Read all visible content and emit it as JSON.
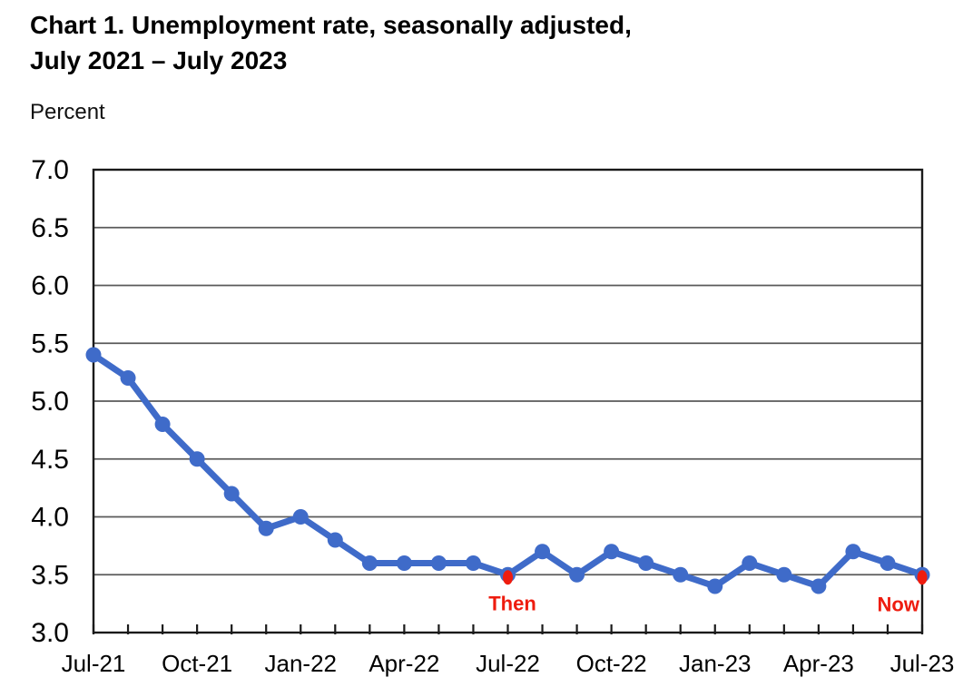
{
  "header": {
    "title_line1": "Chart 1. Unemployment rate, seasonally adjusted,",
    "title_line2": "July 2021 – July 2023",
    "unit_label": "Percent"
  },
  "colors": {
    "line": "#3F6BC9",
    "marker": "#3F6BC9",
    "highlight": "#EE1C0F",
    "annotation_text": "#EE1C0F",
    "gridline": "#5a5a5a",
    "axis": "#1a1a1a",
    "text": "#000000",
    "background": "#ffffff"
  },
  "chart_data": {
    "type": "line",
    "title": "Chart 1. Unemployment rate, seasonally adjusted, July 2021 – July 2023",
    "ylabel": "Percent",
    "xlabel": "",
    "grid": true,
    "legend_position": "none",
    "ylim": [
      3.0,
      7.0
    ],
    "ytick_step": 0.5,
    "ytick_labels": [
      "3.0",
      "3.5",
      "4.0",
      "4.5",
      "5.0",
      "5.5",
      "6.0",
      "6.5",
      "7.0"
    ],
    "x": [
      "Jul-21",
      "Aug-21",
      "Sep-21",
      "Oct-21",
      "Nov-21",
      "Dec-21",
      "Jan-22",
      "Feb-22",
      "Mar-22",
      "Apr-22",
      "May-22",
      "Jun-22",
      "Jul-22",
      "Aug-22",
      "Sep-22",
      "Oct-22",
      "Nov-22",
      "Dec-22",
      "Jan-23",
      "Feb-23",
      "Mar-23",
      "Apr-23",
      "May-23",
      "Jun-23",
      "Jul-23"
    ],
    "series": [
      {
        "name": "Unemployment rate",
        "values": [
          5.4,
          5.2,
          4.8,
          4.5,
          4.2,
          3.9,
          4.0,
          3.8,
          3.6,
          3.6,
          3.6,
          3.6,
          3.5,
          3.7,
          3.5,
          3.7,
          3.6,
          3.5,
          3.4,
          3.6,
          3.5,
          3.4,
          3.7,
          3.6,
          3.5
        ]
      }
    ],
    "xtick_labels": [
      "Jul-21",
      "Oct-21",
      "Jan-22",
      "Apr-22",
      "Jul-22",
      "Oct-22",
      "Jan-23",
      "Apr-23",
      "Jul-23"
    ],
    "xtick_every_month": true,
    "annotations": [
      {
        "label": "Then",
        "x": "Jul-22",
        "value": 3.5
      },
      {
        "label": "Now",
        "x": "Jul-23",
        "value": 3.5
      }
    ]
  }
}
